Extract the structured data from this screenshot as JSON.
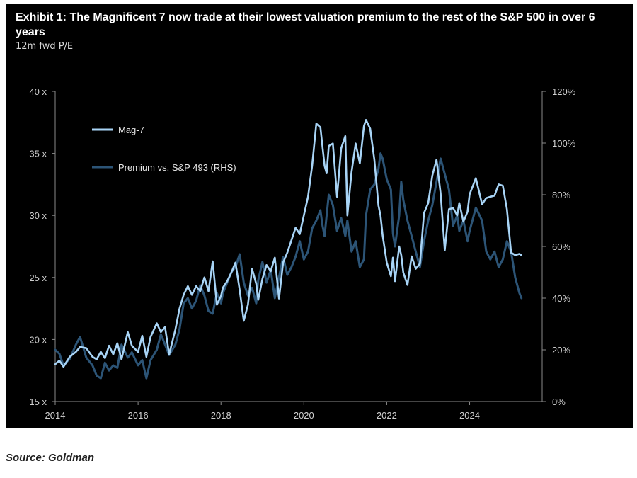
{
  "colors": {
    "background": "#000000",
    "mag7": "#a8d4f6",
    "premium": "#2c5476",
    "axis": "#8a8a8a"
  },
  "header": {
    "title": "Exhibit 1: The Magnificent 7 now trade at their lowest valuation premium to the rest of the S&P 500 in over 6 years",
    "subtitle": "12m fwd P/E"
  },
  "footer": {
    "source": "Source: Goldman"
  },
  "chart_data": {
    "type": "line",
    "title": "Exhibit 1: The Magnificent 7 now trade at their lowest valuation premium to the rest of the S&P 500 in over 6 years",
    "subtitle": "12m fwd P/E",
    "x_range": [
      2014,
      2025.75
    ],
    "x_ticks": [
      2014,
      2016,
      2018,
      2020,
      2022,
      2024
    ],
    "x_tick_labels": [
      "2014",
      "2016",
      "2018",
      "2020",
      "2022",
      "2024"
    ],
    "y_left": {
      "range": [
        15,
        40
      ],
      "ticks": [
        15,
        20,
        25,
        30,
        35,
        40
      ],
      "tick_labels": [
        "15 x",
        "20 x",
        "25 x",
        "30 x",
        "35 x",
        "40 x"
      ]
    },
    "y_right": {
      "range": [
        0,
        120
      ],
      "ticks": [
        0,
        20,
        40,
        60,
        80,
        100,
        120
      ],
      "tick_labels": [
        "0%",
        "20%",
        "40%",
        "60%",
        "80%",
        "100%",
        "120%"
      ]
    },
    "legend": {
      "placement": "top-left",
      "entries": [
        "Mag-7",
        "Premium vs. S&P 493 (RHS)"
      ]
    },
    "series": [
      {
        "name": "Mag-7",
        "axis": "left",
        "x": [
          2014.0,
          2014.1,
          2014.2,
          2014.35,
          2014.5,
          2014.6,
          2014.75,
          2014.9,
          2015.0,
          2015.1,
          2015.2,
          2015.3,
          2015.4,
          2015.5,
          2015.6,
          2015.75,
          2015.85,
          2016.0,
          2016.1,
          2016.2,
          2016.3,
          2016.45,
          2016.55,
          2016.65,
          2016.75,
          2016.9,
          2017.0,
          2017.1,
          2017.2,
          2017.3,
          2017.4,
          2017.5,
          2017.6,
          2017.7,
          2017.8,
          2017.9,
          2018.0,
          2018.05,
          2018.15,
          2018.25,
          2018.35,
          2018.45,
          2018.55,
          2018.65,
          2018.75,
          2018.85,
          2018.9,
          2019.0,
          2019.1,
          2019.2,
          2019.3,
          2019.4,
          2019.5,
          2019.6,
          2019.7,
          2019.8,
          2019.9,
          2020.0,
          2020.1,
          2020.2,
          2020.3,
          2020.4,
          2020.45,
          2020.5,
          2020.55,
          2020.6,
          2020.7,
          2020.8,
          2020.9,
          2021.0,
          2021.05,
          2021.15,
          2021.25,
          2021.35,
          2021.45,
          2021.5,
          2021.6,
          2021.7,
          2021.8,
          2021.85,
          2021.9,
          2022.0,
          2022.1,
          2022.15,
          2022.2,
          2022.3,
          2022.35,
          2022.4,
          2022.5,
          2022.6,
          2022.7,
          2022.8,
          2022.9,
          2023.0,
          2023.1,
          2023.2,
          2023.3,
          2023.4,
          2023.5,
          2023.6,
          2023.7,
          2023.75,
          2023.85,
          2023.95,
          2024.0,
          2024.15,
          2024.3,
          2024.4,
          2024.5,
          2024.6,
          2024.7,
          2024.8,
          2024.9,
          2025.0,
          2025.1,
          2025.2,
          2025.25
        ],
        "values": [
          18.0,
          18.3,
          17.8,
          18.6,
          19.0,
          19.4,
          19.3,
          18.6,
          18.4,
          19.0,
          18.5,
          19.5,
          18.8,
          19.7,
          18.4,
          20.6,
          19.5,
          19.0,
          20.3,
          18.6,
          20.2,
          21.3,
          20.6,
          21.0,
          18.8,
          20.8,
          22.5,
          23.6,
          24.3,
          23.6,
          24.3,
          23.9,
          25.0,
          23.9,
          26.3,
          22.8,
          23.5,
          24.2,
          24.7,
          25.4,
          26.2,
          24.0,
          21.5,
          22.8,
          25.7,
          24.5,
          23.2,
          24.9,
          26.0,
          25.5,
          26.6,
          23.3,
          26.2,
          27.0,
          28.0,
          29.0,
          28.5,
          30.0,
          31.5,
          34.0,
          37.4,
          37.1,
          35.5,
          34.0,
          33.4,
          35.6,
          35.8,
          31.5,
          35.4,
          36.4,
          30.0,
          33.5,
          35.8,
          34.2,
          37.2,
          37.7,
          37.0,
          34.5,
          30.8,
          30.0,
          28.4,
          26.2,
          25.1,
          26.6,
          24.7,
          27.5,
          26.8,
          25.4,
          24.4,
          26.7,
          25.7,
          26.1,
          30.2,
          31.0,
          33.2,
          34.5,
          31.8,
          27.2,
          30.5,
          30.6,
          30.0,
          31.0,
          29.5,
          30.3,
          31.7,
          33.0,
          30.9,
          31.4,
          31.5,
          31.6,
          32.5,
          32.4,
          30.5,
          27.0,
          26.8,
          26.9,
          26.8
        ]
      },
      {
        "name": "Premium vs. S&P 493 (RHS)",
        "axis": "right",
        "x": [
          2014.0,
          2014.1,
          2014.2,
          2014.35,
          2014.5,
          2014.6,
          2014.75,
          2014.9,
          2015.0,
          2015.1,
          2015.2,
          2015.3,
          2015.4,
          2015.5,
          2015.6,
          2015.75,
          2015.85,
          2016.0,
          2016.1,
          2016.2,
          2016.3,
          2016.45,
          2016.55,
          2016.65,
          2016.75,
          2016.9,
          2017.0,
          2017.1,
          2017.2,
          2017.3,
          2017.4,
          2017.5,
          2017.6,
          2017.7,
          2017.8,
          2017.9,
          2018.0,
          2018.05,
          2018.15,
          2018.25,
          2018.35,
          2018.45,
          2018.55,
          2018.65,
          2018.75,
          2018.85,
          2018.9,
          2019.0,
          2019.1,
          2019.2,
          2019.3,
          2019.4,
          2019.5,
          2019.6,
          2019.7,
          2019.8,
          2019.9,
          2020.0,
          2020.1,
          2020.2,
          2020.3,
          2020.4,
          2020.45,
          2020.5,
          2020.55,
          2020.6,
          2020.7,
          2020.8,
          2020.9,
          2021.0,
          2021.05,
          2021.15,
          2021.25,
          2021.35,
          2021.45,
          2021.5,
          2021.6,
          2021.7,
          2021.8,
          2021.85,
          2021.9,
          2022.0,
          2022.1,
          2022.15,
          2022.2,
          2022.3,
          2022.35,
          2022.4,
          2022.5,
          2022.6,
          2022.7,
          2022.8,
          2022.9,
          2023.0,
          2023.1,
          2023.2,
          2023.3,
          2023.4,
          2023.5,
          2023.6,
          2023.7,
          2023.75,
          2023.85,
          2023.95,
          2024.0,
          2024.15,
          2024.3,
          2024.4,
          2024.5,
          2024.6,
          2024.7,
          2024.8,
          2024.9,
          2025.0,
          2025.1,
          2025.2,
          2025.25
        ],
        "values": [
          20.0,
          18.5,
          14.0,
          16.5,
          22.0,
          25.0,
          17.0,
          14.0,
          10.0,
          9.0,
          15.0,
          12.0,
          14.0,
          13.0,
          22.0,
          17.0,
          19.0,
          14.0,
          16.0,
          9.0,
          16.0,
          20.0,
          26.0,
          22.0,
          18.0,
          22.0,
          28.0,
          38.0,
          40.0,
          36.0,
          39.0,
          45.0,
          41.0,
          35.0,
          34.0,
          42.0,
          38.0,
          42.0,
          46.0,
          50.0,
          52.0,
          57.0,
          46.0,
          41.0,
          44.0,
          38.0,
          47.0,
          54.0,
          46.0,
          51.0,
          40.0,
          48.0,
          56.0,
          49.0,
          52.0,
          56.0,
          62.0,
          55.0,
          58.0,
          67.0,
          70.0,
          74.0,
          68.0,
          64.0,
          72.0,
          80.0,
          76.0,
          66.0,
          71.0,
          64.0,
          70.0,
          58.0,
          62.0,
          52.0,
          55.0,
          72.0,
          82.0,
          84.0,
          90.0,
          96.0,
          94.0,
          86.0,
          82.0,
          65.0,
          60.0,
          72.0,
          85.0,
          78.0,
          70.0,
          64.0,
          58.0,
          52.0,
          62.0,
          70.0,
          76.0,
          85.0,
          94.0,
          88.0,
          82.0,
          68.0,
          72.0,
          66.0,
          70.0,
          62.0,
          66.0,
          75.0,
          70.0,
          58.0,
          55.0,
          58.0,
          52.0,
          55.0,
          62.0,
          58.0,
          48.0,
          42.0,
          40.0
        ]
      }
    ]
  }
}
